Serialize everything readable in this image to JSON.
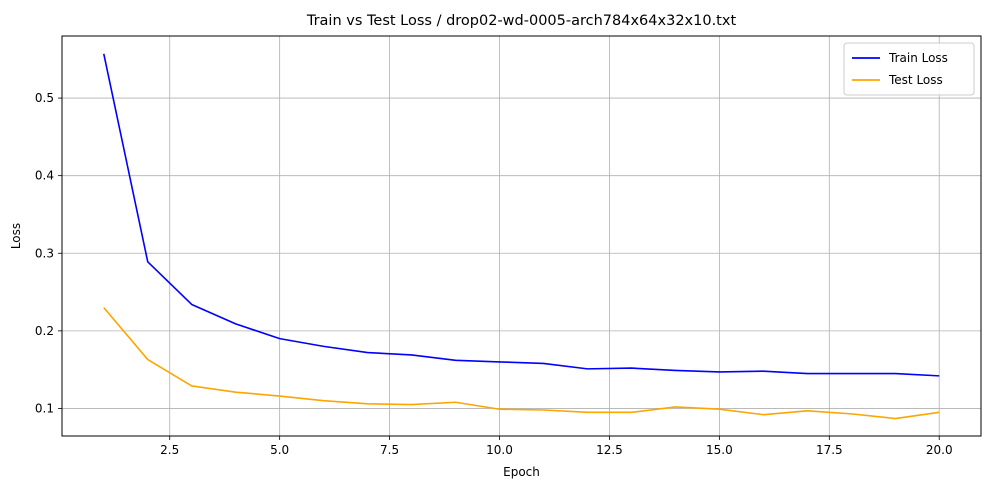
{
  "chart_data": {
    "type": "line",
    "title": "Train vs Test Loss / drop02-wd-0005-arch784x64x32x10.txt",
    "xlabel": "Epoch",
    "ylabel": "Loss",
    "xlim": [
      0.05,
      20.95
    ],
    "ylim": [
      0.0645,
      0.58
    ],
    "x_ticks": [
      2.5,
      5.0,
      7.5,
      10.0,
      12.5,
      15.0,
      17.5,
      20.0
    ],
    "x_tick_labels": [
      "2.5",
      "5.0",
      "7.5",
      "10.0",
      "12.5",
      "15.0",
      "17.5",
      "20.0"
    ],
    "y_ticks": [
      0.1,
      0.2,
      0.3,
      0.4,
      0.5
    ],
    "y_tick_labels": [
      "0.1",
      "0.2",
      "0.3",
      "0.4",
      "0.5"
    ],
    "grid": true,
    "legend_position": "top-right",
    "x": [
      1,
      2,
      3,
      4,
      5,
      6,
      7,
      8,
      9,
      10,
      11,
      12,
      13,
      14,
      15,
      16,
      17,
      18,
      19,
      20
    ],
    "series": [
      {
        "name": "Train Loss",
        "color": "#0000ff",
        "values": [
          0.557,
          0.289,
          0.234,
          0.209,
          0.19,
          0.18,
          0.172,
          0.169,
          0.162,
          0.16,
          0.158,
          0.151,
          0.152,
          0.149,
          0.147,
          0.148,
          0.145,
          0.145,
          0.145,
          0.142
        ]
      },
      {
        "name": "Test Loss",
        "color": "#ffa500",
        "values": [
          0.23,
          0.163,
          0.129,
          0.121,
          0.116,
          0.11,
          0.106,
          0.105,
          0.108,
          0.099,
          0.098,
          0.095,
          0.095,
          0.102,
          0.099,
          0.092,
          0.097,
          0.093,
          0.087,
          0.095
        ]
      }
    ]
  }
}
